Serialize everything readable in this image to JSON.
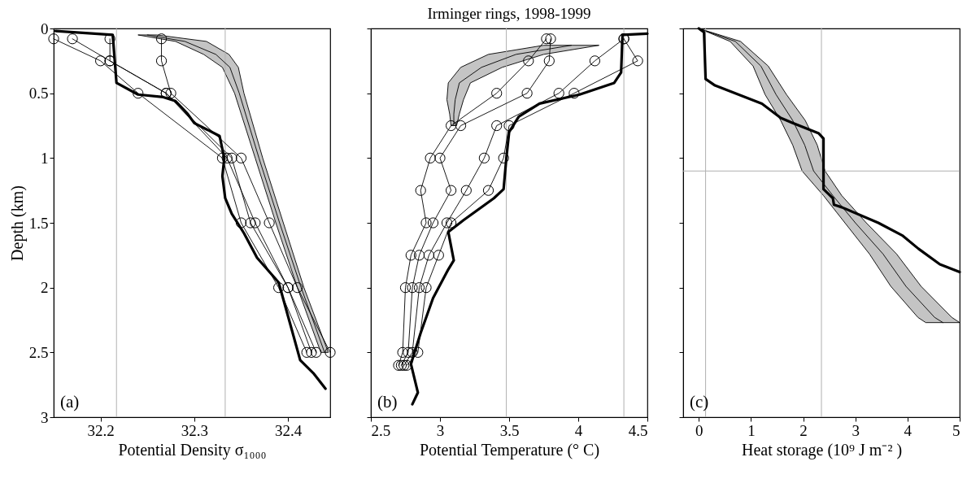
{
  "chart_data": [
    {
      "type": "line",
      "orientation": "horizontal",
      "xlabel": "Potential Density σ₁₀₀₀",
      "ylabel": "Depth (km)",
      "xlim": [
        32.15,
        32.445
      ],
      "xticks": [
        32.2,
        32.3,
        32.4
      ],
      "ylim": [
        3,
        0
      ],
      "yticks": [
        0,
        0.5,
        1,
        1.5,
        2,
        2.5,
        3
      ],
      "ref_lines": [
        {
          "axis": "x",
          "value": 32.217,
          "color": "#b0b0b0"
        },
        {
          "axis": "x",
          "value": 32.333,
          "color": "#b0b0b0"
        }
      ],
      "annotations": [
        "(a)"
      ],
      "series": [
        {
          "color": "#000000",
          "x": [
            0.05,
            0.1,
            0.2,
            0.3,
            0.5,
            1.0,
            1.5,
            2.0,
            2.5
          ],
          "values": [
            32.25,
            32.29,
            32.323,
            32.338,
            32.348,
            32.369,
            32.391,
            32.414,
            32.439
          ],
          "lower": [
            32.24,
            32.28,
            32.31,
            32.33,
            32.343,
            32.365,
            32.387,
            32.41,
            32.435
          ],
          "upper": [
            32.26,
            32.313,
            32.337,
            32.347,
            32.353,
            32.373,
            32.395,
            32.417,
            32.443
          ]
        },
        {
          "color": "#000000",
          "marker": "circle",
          "x": [
            0.08,
            0.25,
            0.5,
            1.0,
            1.5,
            2.0,
            2.5
          ],
          "values": [
            32.15,
            32.2,
            32.24,
            32.33,
            32.35,
            32.39,
            32.42
          ]
        },
        {
          "color": "#000000",
          "marker": "circle",
          "x": [
            0.08,
            0.25,
            0.5,
            1.0,
            1.5,
            2.0,
            2.5
          ],
          "values": [
            32.17,
            32.21,
            32.27,
            32.34,
            32.36,
            32.4,
            32.425
          ]
        },
        {
          "color": "#000000",
          "marker": "circle",
          "x": [
            0.08,
            0.25,
            0.5,
            1.0,
            1.5,
            2.0,
            2.5
          ],
          "values": [
            32.21,
            32.21,
            32.27,
            32.335,
            32.365,
            32.4,
            32.43
          ]
        },
        {
          "color": "#000000",
          "marker": "circle",
          "x": [
            0.08,
            0.25,
            0.5,
            1.0,
            1.5,
            2.0,
            2.5
          ],
          "values": [
            32.265,
            32.265,
            32.275,
            32.35,
            32.38,
            32.41,
            32.445
          ]
        },
        {
          "color": "#000000",
          "x": [
            0.02,
            0.05,
            0.42,
            0.51,
            0.53,
            0.56,
            0.66,
            0.73,
            0.83,
            1.0,
            1.14,
            1.31,
            1.43,
            1.58,
            1.77,
            1.96,
            2.22,
            2.56,
            2.66,
            2.78
          ],
          "values": [
            32.152,
            32.213,
            32.217,
            32.24,
            32.267,
            32.28,
            32.293,
            32.3,
            32.327,
            32.332,
            32.33,
            32.333,
            32.34,
            32.353,
            32.367,
            32.39,
            32.4,
            32.413,
            32.427,
            32.44
          ]
        }
      ]
    },
    {
      "type": "line",
      "orientation": "horizontal",
      "title": "Irminger rings, 1998-1999",
      "xlabel": "Potential Temperature (° C)",
      "xlim": [
        2.5,
        4.5
      ],
      "xticks": [
        2.5,
        3,
        3.5,
        4,
        4.5
      ],
      "ylim": [
        3,
        0
      ],
      "yticks": [
        0,
        0.5,
        1,
        1.5,
        2,
        2.5,
        3
      ],
      "tick_labels": "x",
      "ref_lines": [
        {
          "axis": "x",
          "value": 3.48,
          "color": "#b0b0b0"
        },
        {
          "axis": "x",
          "value": 4.33,
          "color": "#b0b0b0"
        }
      ],
      "annotations": [
        "(b)"
      ],
      "series": [
        {
          "color": "#000000",
          "x": [
            0.13,
            0.2,
            0.3,
            0.42,
            0.55,
            0.66,
            0.75
          ],
          "values": [
            3.95,
            3.55,
            3.3,
            3.14,
            3.11,
            3.1,
            3.1
          ],
          "lower": [
            3.75,
            3.35,
            3.15,
            3.06,
            3.05,
            3.07,
            3.08
          ],
          "upper": [
            4.15,
            3.75,
            3.45,
            3.22,
            3.17,
            3.14,
            3.12
          ]
        },
        {
          "color": "#000000",
          "marker": "circle",
          "x": [
            0.08,
            0.25,
            0.5,
            0.75,
            1.0,
            1.25,
            1.5,
            1.75,
            2.0,
            2.5,
            2.6
          ],
          "values": [
            3.77,
            3.64,
            3.41,
            3.08,
            2.93,
            2.86,
            2.9,
            2.79,
            2.75,
            2.73,
            2.7
          ]
        },
        {
          "color": "#000000",
          "marker": "circle",
          "x": [
            0.08,
            0.25,
            0.5,
            0.75,
            1.0,
            1.25,
            1.5,
            1.75,
            2.0,
            2.5,
            2.6
          ],
          "values": [
            3.8,
            3.79,
            3.63,
            3.15,
            3.0,
            3.08,
            2.95,
            2.85,
            2.8,
            2.77,
            2.72
          ]
        },
        {
          "color": "#000000",
          "marker": "circle",
          "x": [
            0.08,
            0.25,
            0.5,
            0.75,
            1.0,
            1.25,
            1.5,
            1.75,
            2.0,
            2.5,
            2.6
          ],
          "values": [
            4.33,
            4.12,
            3.86,
            3.41,
            3.32,
            3.19,
            3.05,
            2.92,
            2.85,
            2.8,
            2.74
          ]
        },
        {
          "color": "#000000",
          "marker": "circle",
          "x": [
            0.08,
            0.25,
            0.5,
            0.75,
            1.0,
            1.25,
            1.5,
            1.75,
            2.0,
            2.5,
            2.6
          ],
          "values": [
            4.33,
            4.43,
            3.97,
            3.5,
            3.46,
            3.35,
            3.08,
            2.99,
            2.9,
            2.84,
            2.76
          ]
        },
        {
          "color": "#000000",
          "x": [
            0.04,
            0.05,
            0.34,
            0.42,
            0.51,
            0.58,
            0.68,
            0.8,
            1.0,
            1.24,
            1.31,
            1.48,
            1.57,
            1.79,
            1.86,
            2.08,
            2.35,
            2.52,
            2.59,
            2.81,
            2.9
          ],
          "values": [
            4.5,
            4.32,
            4.31,
            4.26,
            4.01,
            3.72,
            3.57,
            3.5,
            3.48,
            3.46,
            3.39,
            3.17,
            3.06,
            3.1,
            3.06,
            2.95,
            2.86,
            2.81,
            2.79,
            2.84,
            2.8
          ]
        }
      ]
    },
    {
      "type": "line",
      "orientation": "horizontal",
      "xlabel": "Heat storage (10⁹ J m⁻² )",
      "xlim": [
        -0.3,
        5
      ],
      "xticks": [
        0,
        1,
        2,
        3,
        4,
        5
      ],
      "ylim": [
        3,
        0
      ],
      "yticks": [
        0,
        0.5,
        1,
        1.5,
        2,
        2.5,
        3
      ],
      "tick_labels": "x",
      "ref_lines": [
        {
          "axis": "x",
          "value": 0.13,
          "color": "#b0b0b0"
        },
        {
          "axis": "x",
          "value": 2.35,
          "color": "#b0b0b0"
        },
        {
          "axis": "y",
          "value": 1.1,
          "color": "#b0b0b0"
        }
      ],
      "annotations": [
        "(c)"
      ],
      "series": [
        {
          "color": "#000000",
          "x": [
            0,
            0.1,
            0.29,
            0.51,
            0.71,
            0.9,
            1.1,
            1.29,
            1.5,
            1.74,
            1.99,
            2.23,
            2.27
          ],
          "values": [
            0,
            0.7,
            1.19,
            1.48,
            1.8,
            2.03,
            2.2,
            2.57,
            3.0,
            3.53,
            3.97,
            4.52,
            4.68
          ],
          "lower": [
            0,
            0.6,
            1.04,
            1.27,
            1.57,
            1.8,
            1.98,
            2.39,
            2.8,
            3.27,
            3.68,
            4.2,
            4.35
          ],
          "upper": [
            0,
            0.8,
            1.33,
            1.68,
            2.04,
            2.27,
            2.42,
            2.74,
            3.21,
            3.79,
            4.26,
            4.85,
            5.0
          ]
        },
        {
          "color": "#000000",
          "x": [
            0,
            0.03,
            0.39,
            0.44,
            0.58,
            0.69,
            0.73,
            0.81,
            0.85,
            1.24,
            1.31,
            1.36,
            1.38,
            1.5,
            1.6,
            1.7,
            1.82,
            1.88
          ],
          "values": [
            0,
            0.1,
            0.13,
            0.31,
            1.21,
            1.57,
            1.8,
            2.3,
            2.39,
            2.39,
            2.57,
            2.59,
            2.74,
            3.44,
            3.91,
            4.21,
            4.62,
            5.0
          ]
        }
      ]
    }
  ]
}
